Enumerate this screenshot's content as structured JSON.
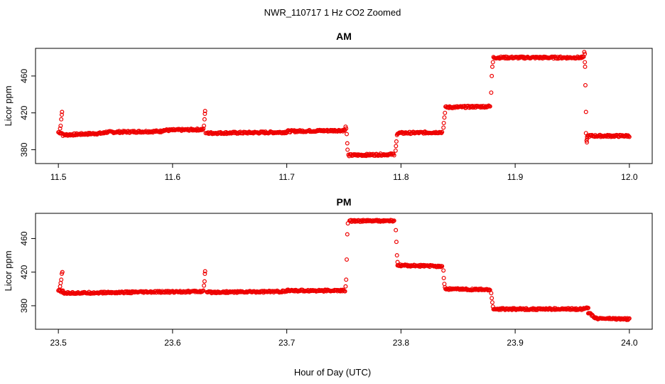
{
  "figure": {
    "title": "NWR_110717  1 Hz CO2 Zoomed",
    "xlabel": "Hour of Day (UTC)"
  },
  "colors": {
    "points": "#ee0000",
    "axes": "#000000"
  },
  "chart_data": [
    {
      "type": "scatter",
      "title": "AM",
      "ylabel": "Licor ppm",
      "xlim": [
        11.48,
        12.02
      ],
      "ylim": [
        365,
        490
      ],
      "xticks": [
        11.5,
        11.6,
        11.7,
        11.8,
        11.9,
        12.0
      ],
      "xtick_labels": [
        "11.5",
        "11.6",
        "11.7",
        "11.8",
        "11.9",
        "12.0"
      ],
      "yticks": [
        380,
        420,
        460
      ],
      "ytick_labels": [
        "380",
        "420",
        "460"
      ],
      "grid": false,
      "marker": "open-circle",
      "segments": [
        {
          "x": [
            11.5,
            11.503
          ],
          "y_start": 399,
          "y_end": 398
        },
        {
          "x": [
            11.504,
            11.54
          ],
          "y_start": 396,
          "y_end": 398
        },
        {
          "x": [
            11.54,
            11.59
          ],
          "y_start": 399,
          "y_end": 400
        },
        {
          "x": [
            11.59,
            11.627
          ],
          "y_start": 401,
          "y_end": 402
        },
        {
          "x": [
            11.63,
            11.7
          ],
          "y_start": 398,
          "y_end": 399
        },
        {
          "x": [
            11.7,
            11.751
          ],
          "y_start": 400,
          "y_end": 401
        },
        {
          "x": [
            11.754,
            11.794
          ],
          "y_start": 374,
          "y_end": 375
        },
        {
          "x": [
            11.797,
            11.836
          ],
          "y_start": 398,
          "y_end": 399
        },
        {
          "x": [
            11.839,
            11.878
          ],
          "y_start": 426,
          "y_end": 427
        },
        {
          "x": [
            11.881,
            11.96
          ],
          "y_start": 480,
          "y_end": 480
        },
        {
          "x": [
            11.963,
            12.0
          ],
          "y_start": 395,
          "y_end": 395
        }
      ],
      "transitions": [
        {
          "x": 11.5015,
          "y": 403
        },
        {
          "x": 11.502,
          "y": 406
        },
        {
          "x": 11.5025,
          "y": 413
        },
        {
          "x": 11.503,
          "y": 418
        },
        {
          "x": 11.5032,
          "y": 421
        },
        {
          "x": 11.6275,
          "y": 406
        },
        {
          "x": 11.628,
          "y": 413
        },
        {
          "x": 11.6283,
          "y": 419
        },
        {
          "x": 11.6285,
          "y": 422
        },
        {
          "x": 11.629,
          "y": 398
        },
        {
          "x": 11.7515,
          "y": 405
        },
        {
          "x": 11.752,
          "y": 403
        },
        {
          "x": 11.7525,
          "y": 397
        },
        {
          "x": 11.753,
          "y": 387
        },
        {
          "x": 11.7532,
          "y": 380
        },
        {
          "x": 11.7953,
          "y": 379
        },
        {
          "x": 11.7956,
          "y": 384
        },
        {
          "x": 11.796,
          "y": 389
        },
        {
          "x": 11.7965,
          "y": 396
        },
        {
          "x": 11.8372,
          "y": 404
        },
        {
          "x": 11.8375,
          "y": 409
        },
        {
          "x": 11.838,
          "y": 415
        },
        {
          "x": 11.8385,
          "y": 420
        },
        {
          "x": 11.879,
          "y": 442
        },
        {
          "x": 11.8795,
          "y": 460
        },
        {
          "x": 11.88,
          "y": 470
        },
        {
          "x": 11.8805,
          "y": 475
        },
        {
          "x": 11.9605,
          "y": 486
        },
        {
          "x": 11.961,
          "y": 484
        },
        {
          "x": 11.961,
          "y": 475
        },
        {
          "x": 11.9612,
          "y": 470
        },
        {
          "x": 11.9615,
          "y": 450
        },
        {
          "x": 11.962,
          "y": 421
        },
        {
          "x": 11.962,
          "y": 398
        },
        {
          "x": 11.9625,
          "y": 390
        },
        {
          "x": 11.9628,
          "y": 388
        },
        {
          "x": 11.963,
          "y": 392
        }
      ]
    },
    {
      "type": "scatter",
      "title": "PM",
      "ylabel": "Licor ppm",
      "xlim": [
        23.48,
        24.02
      ],
      "ylim": [
        352,
        490
      ],
      "xticks": [
        23.5,
        23.6,
        23.7,
        23.8,
        23.9,
        24.0
      ],
      "xtick_labels": [
        "23.5",
        "23.6",
        "23.7",
        "23.8",
        "23.9",
        "24.0"
      ],
      "yticks": [
        380,
        420,
        460
      ],
      "ytick_labels": [
        "380",
        "420",
        "460"
      ],
      "grid": false,
      "marker": "open-circle",
      "segments": [
        {
          "x": [
            23.5,
            23.504
          ],
          "y_start": 398,
          "y_end": 397
        },
        {
          "x": [
            23.504,
            23.627
          ],
          "y_start": 395,
          "y_end": 397
        },
        {
          "x": [
            23.63,
            23.7
          ],
          "y_start": 396,
          "y_end": 397
        },
        {
          "x": [
            23.7,
            23.751
          ],
          "y_start": 398,
          "y_end": 398
        },
        {
          "x": [
            23.755,
            23.794
          ],
          "y_start": 481,
          "y_end": 481
        },
        {
          "x": [
            23.797,
            23.836
          ],
          "y_start": 428,
          "y_end": 427
        },
        {
          "x": [
            23.839,
            23.878
          ],
          "y_start": 400,
          "y_end": 399
        },
        {
          "x": [
            23.881,
            23.96
          ],
          "y_start": 376,
          "y_end": 376
        },
        {
          "x": [
            23.96,
            23.964
          ],
          "y_start": 377,
          "y_end": 378
        },
        {
          "x": [
            23.964,
            23.97
          ],
          "y_start": 372,
          "y_end": 366
        },
        {
          "x": [
            23.97,
            24.0
          ],
          "y_start": 365,
          "y_end": 364
        }
      ],
      "transitions": [
        {
          "x": 23.5015,
          "y": 403
        },
        {
          "x": 23.502,
          "y": 407
        },
        {
          "x": 23.5025,
          "y": 411
        },
        {
          "x": 23.503,
          "y": 418
        },
        {
          "x": 23.5035,
          "y": 420
        },
        {
          "x": 23.6275,
          "y": 404
        },
        {
          "x": 23.628,
          "y": 409
        },
        {
          "x": 23.6283,
          "y": 418
        },
        {
          "x": 23.6285,
          "y": 421
        },
        {
          "x": 23.7515,
          "y": 403
        },
        {
          "x": 23.752,
          "y": 411
        },
        {
          "x": 23.7525,
          "y": 435
        },
        {
          "x": 23.753,
          "y": 465
        },
        {
          "x": 23.7535,
          "y": 478
        },
        {
          "x": 23.7955,
          "y": 470
        },
        {
          "x": 23.796,
          "y": 456
        },
        {
          "x": 23.7965,
          "y": 440
        },
        {
          "x": 23.797,
          "y": 432
        },
        {
          "x": 23.8372,
          "y": 422
        },
        {
          "x": 23.8375,
          "y": 413
        },
        {
          "x": 23.838,
          "y": 406
        },
        {
          "x": 23.8385,
          "y": 402
        },
        {
          "x": 23.879,
          "y": 395
        },
        {
          "x": 23.8795,
          "y": 389
        },
        {
          "x": 23.88,
          "y": 384
        },
        {
          "x": 23.8805,
          "y": 379
        }
      ]
    }
  ]
}
